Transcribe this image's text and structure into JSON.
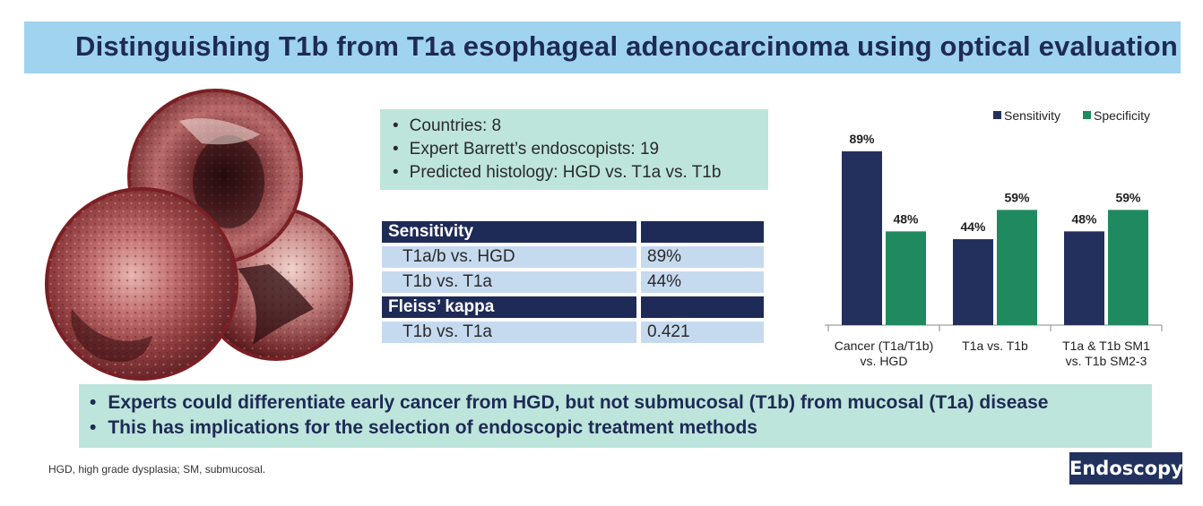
{
  "title": "Distinguishing T1b from T1a esophageal adenocarcinoma using optical evaluation",
  "info": [
    "Countries: 8",
    "Expert Barrett’s endoscopists: 19",
    "Predicted histology: HGD vs. T1a vs. T1b"
  ],
  "stats": {
    "sensitivity_header": "Sensitivity",
    "sens_rows": [
      {
        "label": "T1a/b vs. HGD",
        "value": "89%"
      },
      {
        "label": "T1b vs. T1a",
        "value": "44%"
      }
    ],
    "kappa_header": "Fleiss’ kappa",
    "kappa_rows": [
      {
        "label": "T1b vs. T1a",
        "value": "0.421"
      }
    ]
  },
  "chart_data": {
    "type": "bar",
    "categories": [
      "Cancer (T1a/T1b) vs. HGD",
      "T1a vs. T1b",
      "T1a & T1b SM1 vs. T1b SM2-3"
    ],
    "category_lines": [
      [
        "Cancer (T1a/T1b)",
        "vs. HGD"
      ],
      [
        "T1a vs. T1b"
      ],
      [
        "T1a & T1b SM1",
        "vs. T1b SM2-3"
      ]
    ],
    "series": [
      {
        "name": "Sensitivity",
        "values": [
          89,
          44,
          48
        ],
        "labels": [
          "89%",
          "44%",
          "48%"
        ],
        "color": "#23305e"
      },
      {
        "name": "Specificity",
        "values": [
          48,
          59,
          59
        ],
        "labels": [
          "48%",
          "59%",
          "59%"
        ],
        "color": "#1f8a5f"
      }
    ],
    "ylim": [
      0,
      100
    ],
    "legend": "top-right",
    "grid": false
  },
  "conclusions": [
    "Experts could differentiate early cancer from HGD, but not submucosal (T1b) from mucosal (T1a) disease",
    "This has implications for the selection of endoscopic treatment methods"
  ],
  "footnote": "HGD, high grade dysplasia; SM, submucosal.",
  "brand": "Endoscopy",
  "colors": {
    "title_bg": "#9fd3ee",
    "title_text": "#1e2a55",
    "panel_bg": "#bde5dc",
    "table_header": "#1f2b57",
    "table_cell": "#c6daef",
    "sensitivity": "#23305e",
    "specificity": "#1f8a5f"
  }
}
